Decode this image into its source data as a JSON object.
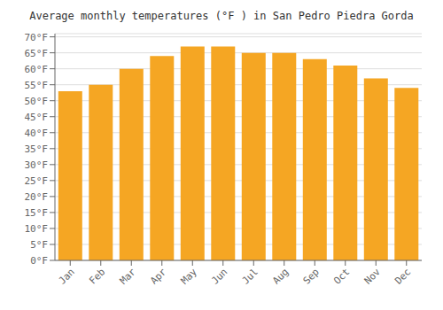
{
  "chart_data": {
    "type": "bar",
    "title": "Average monthly temperatures (°F ) in San Pedro Piedra Gorda",
    "categories": [
      "Jan",
      "Feb",
      "Mar",
      "Apr",
      "May",
      "Jun",
      "Jul",
      "Aug",
      "Sep",
      "Oct",
      "Nov",
      "Dec"
    ],
    "values": [
      53,
      55,
      60,
      64,
      67,
      67,
      65,
      65,
      63,
      61,
      57,
      54
    ],
    "color": "#F5A623",
    "ylim": [
      0,
      71
    ],
    "yticks": [
      {
        "value": 0,
        "label": "0°F"
      },
      {
        "value": 5,
        "label": "5°F"
      },
      {
        "value": 10,
        "label": "10°F"
      },
      {
        "value": 15,
        "label": "15°F"
      },
      {
        "value": 20,
        "label": "20°F"
      },
      {
        "value": 25,
        "label": "25°F"
      },
      {
        "value": 30,
        "label": "30°F"
      },
      {
        "value": 35,
        "label": "35°F"
      },
      {
        "value": 40,
        "label": "40°F"
      },
      {
        "value": 45,
        "label": "45°F"
      },
      {
        "value": 50,
        "label": "50°F"
      },
      {
        "value": 55,
        "label": "55°F"
      },
      {
        "value": 60,
        "label": "60°F"
      },
      {
        "value": 65,
        "label": "65°F"
      },
      {
        "value": 70,
        "label": "70°F"
      }
    ],
    "grid": true
  }
}
